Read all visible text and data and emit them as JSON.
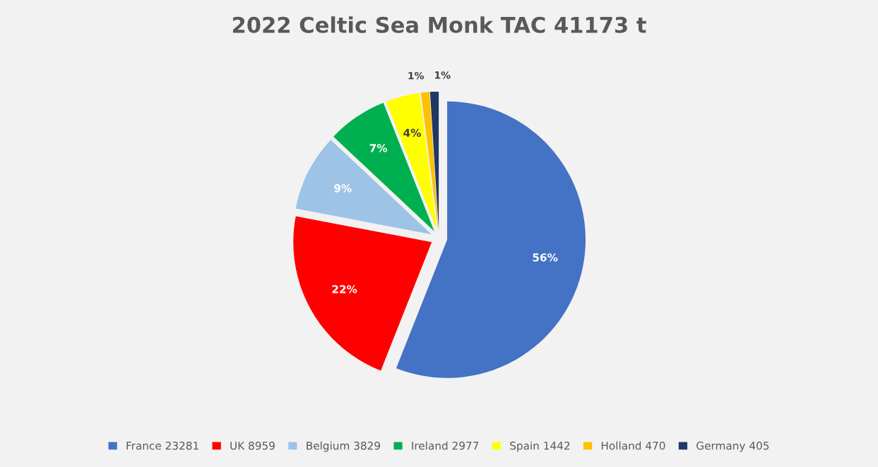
{
  "chart_data": {
    "type": "pie",
    "title": "2022 Celtic Sea Monk TAC 41173 t",
    "categories": [
      "France 23281",
      "UK 8959",
      "Belgium 3829",
      "Ireland 2977",
      "Spain 1442",
      "Holland 470",
      "Germany 405"
    ],
    "values": [
      56,
      22,
      9,
      7,
      4,
      1,
      1
    ],
    "colors": [
      "#4472c4",
      "#ff0000",
      "#9dc3e6",
      "#00b050",
      "#ffff00",
      "#ffc000",
      "#203864"
    ],
    "value_labels": [
      "56%",
      "22%",
      "9%",
      "7%",
      "4%",
      "1%",
      "1%"
    ],
    "legend": "bottom"
  }
}
